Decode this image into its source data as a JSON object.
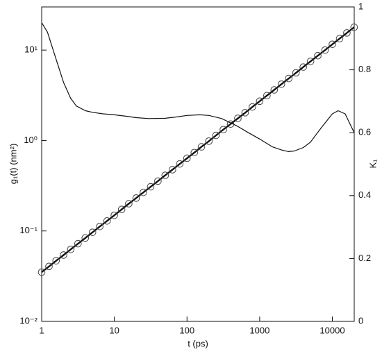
{
  "chart_data": {
    "type": "line",
    "xlabel": "t (ps)",
    "ylabel": "g₁(t) (nm²)",
    "y2label": "K₁",
    "xscale": "log",
    "yscale": "log",
    "xlim": [
      1,
      20000
    ],
    "ylim": [
      0.01,
      30
    ],
    "y2lim": [
      0,
      1
    ],
    "xticks": [
      1,
      10,
      100,
      1000,
      10000
    ],
    "yticks": [
      {
        "value": 0.01,
        "label": "10⁻²"
      },
      {
        "value": 0.1,
        "label": "10⁻¹"
      },
      {
        "value": 1,
        "label": "10⁰"
      },
      {
        "value": 10,
        "label": "10¹"
      }
    ],
    "y2ticks": [
      0,
      0.2,
      0.4,
      0.6,
      0.8,
      1
    ],
    "series": [
      {
        "color": "#111111",
        "marker": "circle",
        "axis": "y",
        "x": [
          1,
          1.26,
          1.58,
          2,
          2.51,
          3.16,
          3.98,
          5.01,
          6.31,
          7.94,
          10,
          12.6,
          15.8,
          20,
          25.1,
          31.6,
          39.8,
          50.1,
          63.1,
          79.4,
          100,
          126,
          158,
          200,
          251,
          316,
          398,
          501,
          631,
          794,
          1000,
          1259,
          1585,
          1995,
          2512,
          3162,
          3981,
          5012,
          6310,
          7943,
          10000,
          12589,
          15849,
          19953
        ],
        "values": [
          0.035,
          0.0405,
          0.0468,
          0.0541,
          0.0625,
          0.0723,
          0.0836,
          0.0966,
          0.112,
          0.129,
          0.149,
          0.173,
          0.2,
          0.231,
          0.267,
          0.308,
          0.356,
          0.412,
          0.476,
          0.551,
          0.637,
          0.736,
          0.851,
          0.984,
          1.14,
          1.32,
          1.52,
          1.76,
          2.03,
          2.35,
          2.72,
          3.14,
          3.63,
          4.2,
          4.85,
          5.61,
          6.49,
          7.5,
          8.67,
          10,
          11.6,
          13.4,
          15.5,
          17.9
        ]
      },
      {
        "color": "#111111",
        "axis": "y2",
        "x": [
          1,
          1.2,
          1.5,
          2,
          2.5,
          3,
          4,
          5,
          7,
          10,
          15,
          20,
          30,
          50,
          70,
          100,
          150,
          200,
          300,
          500,
          700,
          1000,
          1500,
          2000,
          2500,
          3000,
          4000,
          5000,
          7000,
          10000,
          12000,
          15000,
          20000
        ],
        "values": [
          0.95,
          0.92,
          0.85,
          0.76,
          0.71,
          0.685,
          0.67,
          0.665,
          0.66,
          0.657,
          0.652,
          0.648,
          0.645,
          0.646,
          0.65,
          0.655,
          0.657,
          0.655,
          0.645,
          0.62,
          0.6,
          0.58,
          0.555,
          0.545,
          0.54,
          0.542,
          0.553,
          0.57,
          0.615,
          0.66,
          0.67,
          0.66,
          0.6
        ]
      }
    ]
  }
}
